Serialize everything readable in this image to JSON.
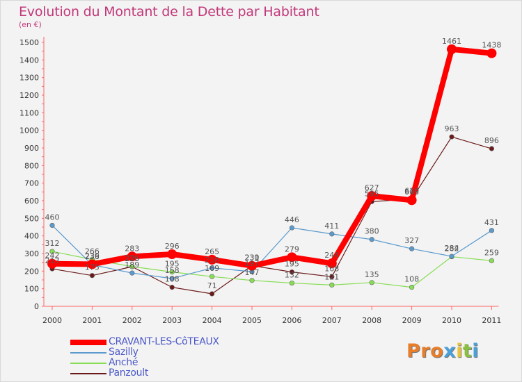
{
  "header": {
    "title": "Evolution du Montant de la Dette par Habitant",
    "unit": "(en €)"
  },
  "logo": {
    "text": "Proxiti",
    "letter_colors": [
      "#e87d2a",
      "#e87d2a",
      "#e87d2a",
      "#4aa0d8",
      "#e8c23a",
      "#8ac040",
      "#4aa0d8"
    ]
  },
  "chart_data": {
    "type": "line",
    "title": "Evolution du Montant de la Dette par Habitant",
    "subtitle": "(en €)",
    "xlabel": "",
    "ylabel": "",
    "categories": [
      "2000",
      "2001",
      "2002",
      "2003",
      "2004",
      "2005",
      "2006",
      "2007",
      "2008",
      "2009",
      "2010",
      "2011"
    ],
    "ylim": [
      0,
      1500
    ],
    "yticks": [
      0,
      100,
      200,
      300,
      400,
      500,
      600,
      700,
      800,
      900,
      1000,
      1100,
      1200,
      1300,
      1400,
      1500
    ],
    "grid": false,
    "legend_position": "bottom-left",
    "series": [
      {
        "name": "CRAVANT-LES-CôTEAUX",
        "color": "#ff0000",
        "values": [
          242,
          239,
          283,
          296,
          265,
          230,
          279,
          244,
          627,
          603,
          1461,
          1438
        ]
      },
      {
        "name": "Sazilly",
        "color": "#5a9acd",
        "values": [
          460,
          236,
          189,
          158,
          218,
          197,
          446,
          411,
          380,
          327,
          284,
          431
        ]
      },
      {
        "name": "Anché",
        "color": "#88dd55",
        "values": [
          312,
          266,
          226,
          195,
          169,
          147,
          132,
          121,
          135,
          108,
          282,
          259
        ]
      },
      {
        "name": "Panzoult",
        "color": "#6b1a1a",
        "values": [
          213,
          175,
          225,
          108,
          71,
          231,
          195,
          168,
          595,
          610,
          963,
          896
        ]
      }
    ]
  }
}
